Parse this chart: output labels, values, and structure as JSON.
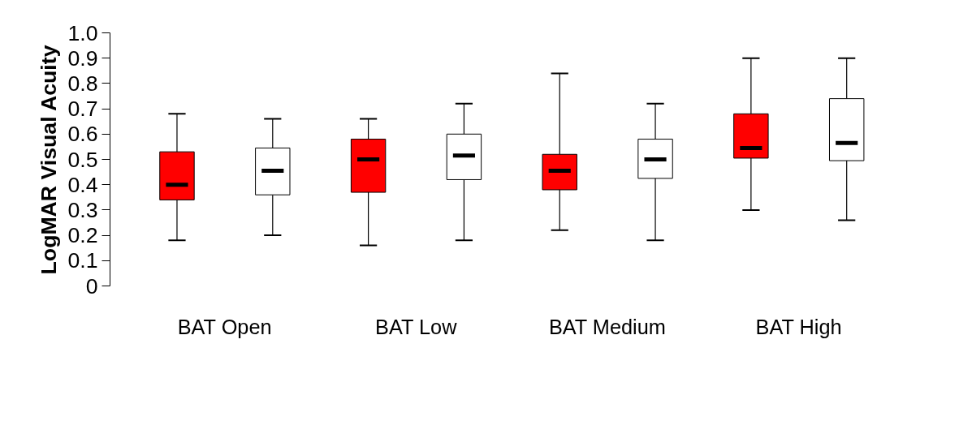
{
  "chart_data": {
    "type": "box",
    "ylabel": "LogMAR Visual Acuity",
    "categories": [
      "BAT Open",
      "BAT Low",
      "BAT Medium",
      "BAT High"
    ],
    "ylim": [
      0,
      1.0
    ],
    "yticks": [
      {
        "value": 0,
        "label": "0"
      },
      0.1,
      0.2,
      0.3,
      0.4,
      0.5,
      0.6,
      0.7,
      0.8,
      0.9,
      {
        "value": 1.0,
        "label": "1.0"
      }
    ],
    "grid": false,
    "series": [
      {
        "color": "#ff0000",
        "boxes": [
          {
            "low": 0.18,
            "q1": 0.34,
            "median": 0.4,
            "q3": 0.53,
            "high": 0.68
          },
          {
            "low": 0.16,
            "q1": 0.37,
            "median": 0.5,
            "q3": 0.58,
            "high": 0.66
          },
          {
            "low": 0.22,
            "q1": 0.38,
            "median": 0.455,
            "q3": 0.52,
            "high": 0.84
          },
          {
            "low": 0.3,
            "q1": 0.505,
            "median": 0.545,
            "q3": 0.68,
            "high": 0.9
          }
        ]
      },
      {
        "color": "#ffffff",
        "boxes": [
          {
            "low": 0.2,
            "q1": 0.36,
            "median": 0.455,
            "q3": 0.545,
            "high": 0.66
          },
          {
            "low": 0.18,
            "q1": 0.42,
            "median": 0.515,
            "q3": 0.6,
            "high": 0.72
          },
          {
            "low": 0.18,
            "q1": 0.425,
            "median": 0.5,
            "q3": 0.58,
            "high": 0.72
          },
          {
            "low": 0.26,
            "q1": 0.495,
            "median": 0.565,
            "q3": 0.74,
            "high": 0.9
          }
        ]
      }
    ]
  }
}
